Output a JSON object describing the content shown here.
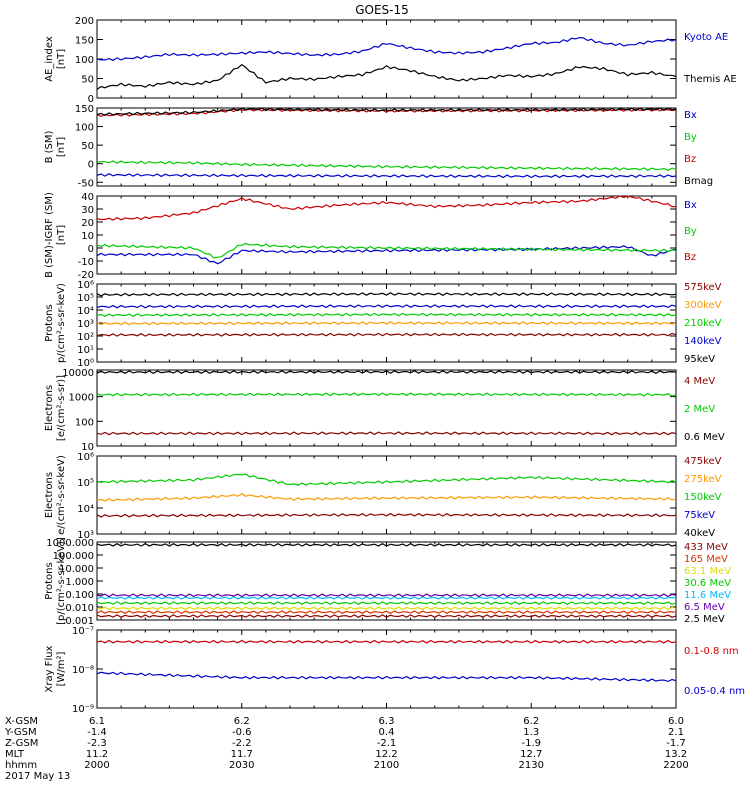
{
  "title": "GOES-15",
  "chart_data": [
    {
      "type": "line",
      "ylabel": [
        "AE_index",
        "[nT]"
      ],
      "ylim": [
        0,
        200
      ],
      "yticks": [
        {
          "v": 0,
          "t": "0"
        },
        {
          "v": 50,
          "t": "50"
        },
        {
          "v": 100,
          "t": "100"
        },
        {
          "v": 150,
          "t": "150"
        },
        {
          "v": 200,
          "t": "200"
        }
      ],
      "series": [
        {
          "name": "Kyoto AE",
          "color": "#0000cc",
          "x": [
            0,
            5,
            10,
            15,
            20,
            25,
            30,
            35,
            40,
            45,
            50,
            55,
            60,
            65,
            70,
            75,
            80,
            85,
            90,
            95,
            100,
            105,
            110,
            115,
            120
          ],
          "values": [
            98,
            100,
            105,
            112,
            110,
            112,
            115,
            118,
            114,
            110,
            112,
            120,
            140,
            128,
            118,
            115,
            118,
            128,
            140,
            142,
            155,
            140,
            135,
            145,
            150
          ]
        },
        {
          "name": "Themis AE",
          "color": "#000000",
          "x": [
            0,
            5,
            10,
            15,
            20,
            25,
            30,
            35,
            40,
            45,
            50,
            55,
            60,
            65,
            70,
            75,
            80,
            85,
            90,
            95,
            100,
            105,
            110,
            115,
            120
          ],
          "values": [
            25,
            35,
            30,
            40,
            35,
            45,
            85,
            40,
            50,
            48,
            55,
            60,
            80,
            70,
            55,
            45,
            50,
            58,
            55,
            62,
            80,
            75,
            60,
            65,
            55
          ]
        }
      ]
    },
    {
      "type": "line",
      "ylabel": [
        "B (SM)",
        "[nT]"
      ],
      "ylim": [
        -60,
        150
      ],
      "yticks": [
        {
          "v": -50,
          "t": "-50"
        },
        {
          "v": 0,
          "t": "0"
        },
        {
          "v": 50,
          "t": "50"
        },
        {
          "v": 100,
          "t": "100"
        },
        {
          "v": 150,
          "t": "150"
        }
      ],
      "series": [
        {
          "name": "Bx",
          "color": "#0000cc",
          "x": [
            0,
            30,
            60,
            90,
            120
          ],
          "values": [
            -30,
            -32,
            -33,
            -34,
            -33
          ]
        },
        {
          "name": "By",
          "color": "#00cc00",
          "x": [
            0,
            20,
            30,
            60,
            90,
            120
          ],
          "values": [
            5,
            2,
            -2,
            -8,
            -12,
            -15
          ]
        },
        {
          "name": "Bz",
          "color": "#cc0000",
          "x": [
            0,
            20,
            30,
            60,
            90,
            120
          ],
          "values": [
            130,
            135,
            145,
            142,
            143,
            145
          ]
        },
        {
          "name": "Bmag",
          "color": "#000000",
          "x": [
            0,
            20,
            30,
            60,
            90,
            120
          ],
          "values": [
            133,
            138,
            147,
            144,
            145,
            147
          ]
        }
      ]
    },
    {
      "type": "line",
      "ylabel": [
        "B (SM)-IGRF (SM)",
        "[nT]"
      ],
      "ylim": [
        -20,
        40
      ],
      "yticks": [
        {
          "v": -20,
          "t": "-20"
        },
        {
          "v": -10,
          "t": "-10"
        },
        {
          "v": 0,
          "t": "0"
        },
        {
          "v": 10,
          "t": "10"
        },
        {
          "v": 20,
          "t": "20"
        },
        {
          "v": 30,
          "t": "30"
        },
        {
          "v": 40,
          "t": "40"
        }
      ],
      "series": [
        {
          "name": "Bx",
          "color": "#0000cc",
          "x": [
            0,
            10,
            20,
            25,
            30,
            40,
            60,
            90,
            110,
            115,
            120
          ],
          "values": [
            -5,
            -5,
            -5,
            -12,
            -2,
            -3,
            -2,
            -1,
            1,
            -6,
            -1
          ]
        },
        {
          "name": "By",
          "color": "#00cc00",
          "x": [
            0,
            10,
            20,
            25,
            30,
            40,
            60,
            90,
            120
          ],
          "values": [
            2,
            1,
            0,
            -8,
            3,
            1,
            0,
            -1,
            -2
          ]
        },
        {
          "name": "Bz",
          "color": "#cc0000",
          "x": [
            0,
            10,
            20,
            30,
            40,
            50,
            60,
            70,
            80,
            90,
            100,
            110,
            120
          ],
          "values": [
            22,
            23,
            27,
            38,
            30,
            33,
            35,
            32,
            33,
            35,
            36,
            40,
            32
          ]
        }
      ]
    },
    {
      "type": "line",
      "log": true,
      "ylabel": [
        "Protons",
        "p/(cm²-s-sr-keV)"
      ],
      "ylim": [
        1,
        1000000
      ],
      "yticks": [
        {
          "v": 1,
          "t": "10⁰"
        },
        {
          "v": 10,
          "t": "10¹"
        },
        {
          "v": 100,
          "t": "10²"
        },
        {
          "v": 1000,
          "t": "10³"
        },
        {
          "v": 10000,
          "t": "10⁴"
        },
        {
          "v": 100000,
          "t": "10⁵"
        },
        {
          "v": 1000000,
          "t": "10⁶"
        }
      ],
      "series": [
        {
          "name": "575keV",
          "color": "#8b0000",
          "x": [
            0,
            60,
            120
          ],
          "values": [
            120,
            130,
            125
          ]
        },
        {
          "name": "300keV",
          "color": "#ff9900",
          "x": [
            0,
            60,
            120
          ],
          "values": [
            900,
            1000,
            950
          ]
        },
        {
          "name": "210keV",
          "color": "#00cc00",
          "x": [
            0,
            60,
            120
          ],
          "values": [
            4000,
            4500,
            4200
          ]
        },
        {
          "name": "140keV",
          "color": "#0000cc",
          "x": [
            0,
            60,
            120
          ],
          "values": [
            18000,
            20000,
            19000
          ]
        },
        {
          "name": "95keV",
          "color": "#000000",
          "x": [
            0,
            60,
            120
          ],
          "values": [
            150000,
            170000,
            160000
          ]
        }
      ]
    },
    {
      "type": "line",
      "log": true,
      "ylabel": [
        "Electrons",
        "[e/(cm²-s-sr)]"
      ],
      "ylim": [
        10,
        12000
      ],
      "yticks": [
        {
          "v": 10,
          "t": "10"
        },
        {
          "v": 100,
          "t": "100"
        },
        {
          "v": 1000,
          "t": "1000"
        },
        {
          "v": 10000,
          "t": "10000"
        }
      ],
      "series": [
        {
          "name": "4 MeV",
          "color": "#8b0000",
          "x": [
            0,
            60,
            120
          ],
          "values": [
            32,
            33,
            32
          ]
        },
        {
          "name": "2 MeV",
          "color": "#00cc00",
          "x": [
            0,
            60,
            120
          ],
          "values": [
            1200,
            1250,
            1200
          ]
        },
        {
          "name": "0.6 MeV",
          "color": "#000000",
          "x": [
            0,
            60,
            120
          ],
          "values": [
            9800,
            10000,
            9900
          ]
        }
      ]
    },
    {
      "type": "line",
      "log": true,
      "ylabel": [
        "Electrons",
        "e/(cm²-s-sr-keV)"
      ],
      "ylim": [
        1000,
        1000000
      ],
      "yticks": [
        {
          "v": 1000,
          "t": "10³"
        },
        {
          "v": 10000,
          "t": "10⁴"
        },
        {
          "v": 100000,
          "t": "10⁵"
        },
        {
          "v": 1000000,
          "t": "10⁶"
        }
      ],
      "series": [
        {
          "name": "475keV",
          "color": "#8b0000",
          "x": [
            0,
            60,
            120
          ],
          "values": [
            5000,
            5500,
            5200
          ]
        },
        {
          "name": "275keV",
          "color": "#ff9900",
          "x": [
            0,
            20,
            30,
            40,
            60,
            90,
            120
          ],
          "values": [
            20000,
            24000,
            32000,
            22000,
            24000,
            26000,
            22000
          ]
        },
        {
          "name": "150keV",
          "color": "#00cc00",
          "x": [
            0,
            20,
            30,
            40,
            60,
            90,
            120
          ],
          "values": [
            100000,
            120000,
            200000,
            80000,
            100000,
            150000,
            100000
          ]
        },
        {
          "name": "75keV",
          "color": "#0000cc",
          "x": [],
          "values": []
        },
        {
          "name": "40keV",
          "color": "#000000",
          "x": [],
          "values": []
        }
      ]
    },
    {
      "type": "line",
      "log": true,
      "ylabel": [
        "Protons",
        "[p/(cm²-s-sr-keV)]"
      ],
      "ylim": [
        0.001,
        1000
      ],
      "yticks": [
        {
          "v": 0.001,
          "t": "0.001"
        },
        {
          "v": 0.01,
          "t": "0.010"
        },
        {
          "v": 0.1,
          "t": "0.100"
        },
        {
          "v": 1,
          "t": "1.000"
        },
        {
          "v": 10,
          "t": "10.000"
        },
        {
          "v": 100,
          "t": "100.000"
        },
        {
          "v": 1000,
          "t": "1000.000"
        }
      ],
      "series": [
        {
          "name": "433 MeV",
          "color": "#8b0000",
          "x": [
            0,
            60,
            120
          ],
          "values": [
            0.002,
            0.002,
            0.002
          ]
        },
        {
          "name": "165 MeV",
          "color": "#dd3300",
          "x": [
            0,
            60,
            120
          ],
          "values": [
            0.004,
            0.004,
            0.004
          ]
        },
        {
          "name": "63.1 MeV",
          "color": "#dddd00",
          "x": [
            0,
            60,
            120
          ],
          "values": [
            0.008,
            0.008,
            0.008
          ]
        },
        {
          "name": "30.6 MeV",
          "color": "#00cc00",
          "x": [
            0,
            60,
            120
          ],
          "values": [
            0.02,
            0.02,
            0.02
          ]
        },
        {
          "name": "11.6 MeV",
          "color": "#00bbff",
          "x": [
            0,
            60,
            120
          ],
          "values": [
            0.05,
            0.05,
            0.05
          ]
        },
        {
          "name": "6.5 MeV",
          "color": "#6600aa",
          "x": [
            0,
            60,
            120
          ],
          "values": [
            0.08,
            0.08,
            0.08
          ]
        },
        {
          "name": "2.5 MeV",
          "color": "#000000",
          "x": [
            0,
            60,
            120
          ],
          "values": [
            600,
            600,
            600
          ]
        }
      ]
    },
    {
      "type": "line",
      "log": true,
      "ylabel": [
        "Xray Flux",
        "[W/m²]"
      ],
      "ylim": [
        1e-09,
        1e-07
      ],
      "yticks": [
        {
          "v": 1e-09,
          "t": "10⁻⁹"
        },
        {
          "v": 1e-08,
          "t": "10⁻⁸"
        },
        {
          "v": 1e-07,
          "t": "10⁻⁷"
        }
      ],
      "series": [
        {
          "name": "0.1-0.8 nm",
          "color": "#cc0000",
          "x": [
            0,
            60,
            120
          ],
          "values": [
            5e-08,
            5e-08,
            5e-08
          ]
        },
        {
          "name": "0.05-0.4 nm",
          "color": "#0000cc",
          "x": [
            0,
            30,
            60,
            90,
            120
          ],
          "values": [
            8e-09,
            6e-09,
            6e-09,
            6e-09,
            5e-09
          ]
        }
      ]
    }
  ],
  "bottom_axis": {
    "xlim": [
      0,
      120
    ],
    "row_labels": [
      "X-GSM",
      "Y-GSM",
      "Z-GSM",
      "MLT",
      "hhmm",
      "2017 May 13"
    ],
    "columns": [
      {
        "x": 0,
        "values": [
          "6.1",
          "-1.4",
          "-2.3",
          "11.2",
          "2000"
        ]
      },
      {
        "x": 30,
        "values": [
          "6.2",
          "-0.6",
          "-2.2",
          "11.7",
          "2030"
        ]
      },
      {
        "x": 60,
        "values": [
          "6.3",
          "0.4",
          "-2.1",
          "12.2",
          "2100"
        ]
      },
      {
        "x": 90,
        "values": [
          "6.2",
          "1.3",
          "-1.9",
          "12.7",
          "2130"
        ]
      },
      {
        "x": 120,
        "values": [
          "6.0",
          "2.1",
          "-1.7",
          "13.2",
          "2200"
        ]
      }
    ]
  }
}
